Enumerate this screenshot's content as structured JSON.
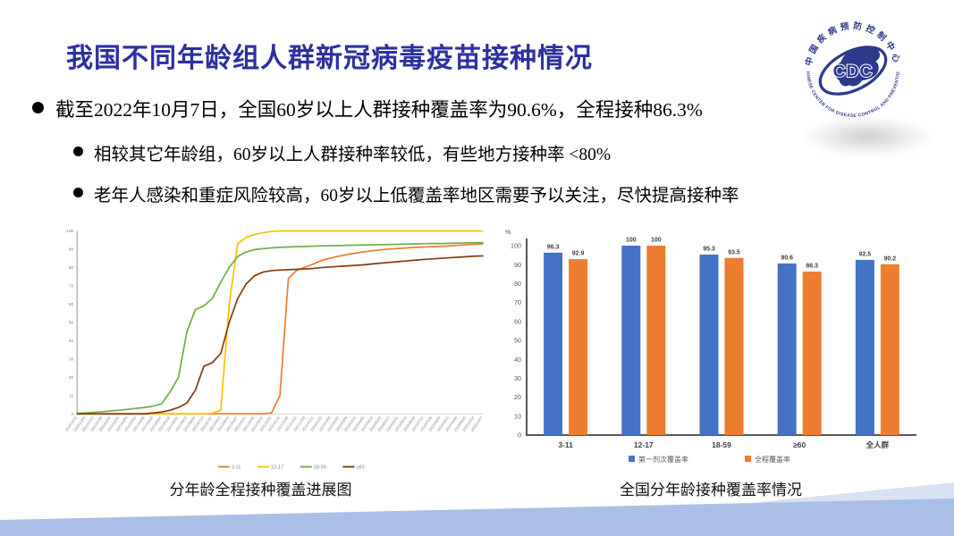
{
  "slide": {
    "title": "我国不同年龄组人群新冠病毒疫苗接种情况",
    "bullets": {
      "main": "截至2022年10月7日，全国60岁以上人群接种覆盖率为90.6%，全程接种86.3%",
      "sub1": "相较其它年龄组，60岁以上人群接种率较低，有些地方接种率 <80%",
      "sub2": "老年人感染和重症风险较高，60岁以上低覆盖率地区需要予以关注，尽快提高接种率"
    },
    "title_color": "#2d2fa0"
  },
  "logo": {
    "center": "CDC",
    "top_text": "中国疾病预防控制中心",
    "bottom_text": "CHINESE CENTER FOR DISEASE CONTROL AND PREVENTION",
    "color": "#2c3a8c"
  },
  "chart_data": [
    {
      "type": "line",
      "title": "分年龄全程接种覆盖进展图",
      "xlabel": "",
      "ylabel": "",
      "ylim": [
        0,
        100
      ],
      "ytick_step": 10,
      "legend_position": "bottom",
      "x": [
        "2020/12/15",
        "2020/12/29",
        "2021/01/12",
        "2021/01/26",
        "2021/02/09",
        "2021/02/23",
        "2021/03/09",
        "2021/03/23",
        "2021/04/06",
        "2021/04/20",
        "2021/05/04",
        "2021/05/18",
        "2021/06/01",
        "2021/06/15",
        "2021/06/29",
        "2021/07/13",
        "2021/07/27",
        "2021/08/10",
        "2021/08/24",
        "2021/09/07",
        "2021/09/21",
        "2021/10/05",
        "2021/10/19",
        "2021/11/02",
        "2021/11/16",
        "2021/11/30",
        "2021/12/14",
        "2021/12/28",
        "2022/01/11",
        "2022/01/25",
        "2022/02/08",
        "2022/02/22",
        "2022/03/08",
        "2022/03/22",
        "2022/04/05",
        "2022/04/19",
        "2022/05/03",
        "2022/05/17",
        "2022/05/31",
        "2022/06/14",
        "2022/06/28",
        "2022/07/12",
        "2022/07/26",
        "2022/08/09",
        "2022/08/23",
        "2022/09/06",
        "2022/09/20",
        "2022/10/04",
        "2022/10/07"
      ],
      "series": [
        {
          "name": "3-11",
          "color": "#ED7D31",
          "values": [
            0,
            0,
            0,
            0,
            0,
            0,
            0,
            0,
            0,
            0,
            0,
            0,
            0,
            0,
            0,
            0,
            0,
            0,
            0,
            0,
            0,
            0,
            0,
            0.5,
            10,
            74,
            78.5,
            80.2,
            82,
            84,
            85.2,
            86.2,
            87.1,
            87.9,
            88.6,
            89.2,
            89.7,
            90.1,
            90.4,
            90.7,
            91,
            91.2,
            91.4,
            91.6,
            91.8,
            92.1,
            92.4,
            92.7,
            92.9
          ]
        },
        {
          "name": "12-17",
          "color": "#FFC000",
          "values": [
            0,
            0,
            0,
            0,
            0,
            0,
            0,
            0,
            0,
            0,
            0,
            0,
            0,
            0,
            0,
            0,
            0.3,
            2,
            60,
            93,
            96.5,
            98,
            99,
            99.7,
            100,
            100,
            100,
            100,
            100,
            100,
            100,
            100,
            100,
            100,
            100,
            100,
            100,
            100,
            100,
            100,
            100,
            100,
            100,
            100,
            100,
            100,
            100,
            100,
            100
          ]
        },
        {
          "name": "18-59",
          "color": "#70AD47",
          "values": [
            0.2,
            0.5,
            0.8,
            1.2,
            1.6,
            2,
            2.5,
            3,
            3.5,
            4.2,
            5.5,
            12,
            20,
            45,
            57,
            59,
            63,
            72,
            80,
            86,
            88.5,
            89.8,
            90.3,
            90.7,
            91,
            91.2,
            91.4,
            91.5,
            91.7,
            91.8,
            91.9,
            92,
            92.1,
            92.2,
            92.3,
            92.4,
            92.5,
            92.6,
            92.7,
            92.8,
            92.9,
            93,
            93.1,
            93.1,
            93.2,
            93.3,
            93.4,
            93.5,
            93.5
          ]
        },
        {
          "name": "≥60",
          "color": "#843C0C",
          "values": [
            0,
            0,
            0,
            0,
            0,
            0,
            0,
            0,
            0,
            0.5,
            1,
            2,
            3.5,
            6,
            13,
            26,
            28,
            33,
            50,
            63,
            71,
            75.5,
            77.5,
            78.3,
            78.6,
            78.8,
            79,
            79.2,
            79.5,
            80,
            80.3,
            80.6,
            80.9,
            81.2,
            81.5,
            82,
            82.4,
            82.8,
            83.2,
            83.6,
            84,
            84.4,
            84.7,
            85,
            85.3,
            85.6,
            85.9,
            86.2,
            86.3
          ]
        }
      ]
    },
    {
      "type": "bar",
      "title": "全国分年龄接种覆盖率情况",
      "xlabel": "",
      "ylabel": "%",
      "ylim": [
        0,
        100
      ],
      "ytick_step": 10,
      "legend_position": "bottom",
      "categories": [
        "3-11",
        "12-17",
        "18-59",
        "≥60",
        "全人群"
      ],
      "series": [
        {
          "name": "第一剂次覆盖率",
          "color": "#4472C4",
          "values": [
            96.3,
            100,
            95.3,
            90.6,
            92.5
          ]
        },
        {
          "name": "全程覆盖率",
          "color": "#ED7D31",
          "values": [
            92.9,
            100,
            93.5,
            86.3,
            90.2
          ]
        }
      ]
    }
  ]
}
